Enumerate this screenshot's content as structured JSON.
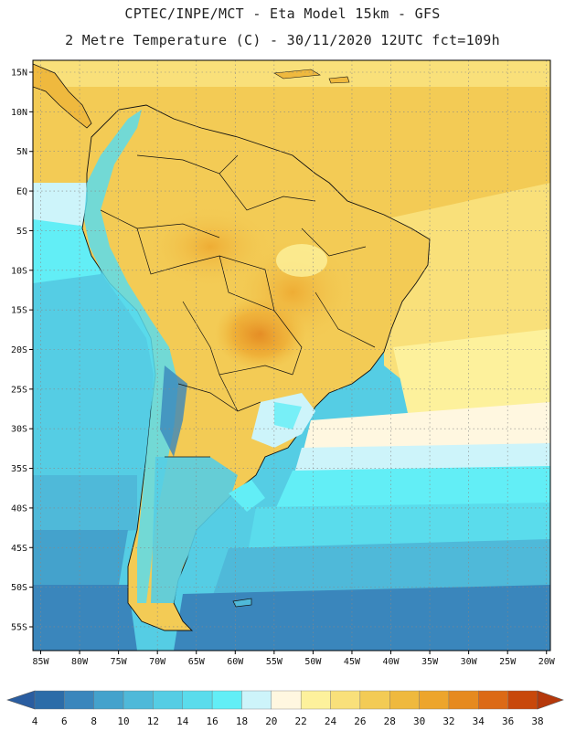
{
  "title": {
    "line1": "CPTEC/INPE/MCT -  Eta Model 15km - GFS",
    "line2": "2 Metre Temperature (C) - 30/11/2020 12UTC fct=109h"
  },
  "map": {
    "latitudes": [
      {
        "value": 15,
        "label": "15N"
      },
      {
        "value": 10,
        "label": "10N"
      },
      {
        "value": 5,
        "label": "5N"
      },
      {
        "value": 0,
        "label": "EQ"
      },
      {
        "value": -5,
        "label": "5S"
      },
      {
        "value": -10,
        "label": "10S"
      },
      {
        "value": -15,
        "label": "15S"
      },
      {
        "value": -20,
        "label": "20S"
      },
      {
        "value": -25,
        "label": "25S"
      },
      {
        "value": -30,
        "label": "30S"
      },
      {
        "value": -35,
        "label": "35S"
      },
      {
        "value": -40,
        "label": "40S"
      },
      {
        "value": -45,
        "label": "45S"
      },
      {
        "value": -50,
        "label": "50S"
      },
      {
        "value": -55,
        "label": "55S"
      }
    ],
    "longitudes": [
      {
        "value": -85,
        "label": "85W"
      },
      {
        "value": -80,
        "label": "80W"
      },
      {
        "value": -75,
        "label": "75W"
      },
      {
        "value": -70,
        "label": "70W"
      },
      {
        "value": -65,
        "label": "65W"
      },
      {
        "value": -60,
        "label": "60W"
      },
      {
        "value": -55,
        "label": "55W"
      },
      {
        "value": -50,
        "label": "50W"
      },
      {
        "value": -45,
        "label": "45W"
      },
      {
        "value": -40,
        "label": "40W"
      },
      {
        "value": -35,
        "label": "35W"
      },
      {
        "value": -30,
        "label": "30W"
      },
      {
        "value": -25,
        "label": "25W"
      },
      {
        "value": -20,
        "label": "20W"
      }
    ],
    "lat_range": [
      -58,
      16.5
    ],
    "lon_range": [
      -86,
      -19.5
    ]
  },
  "colorbar": {
    "labels": [
      "4",
      "6",
      "8",
      "10",
      "12",
      "14",
      "16",
      "18",
      "20",
      "22",
      "24",
      "26",
      "28",
      "30",
      "32",
      "34",
      "36",
      "38"
    ],
    "colors": [
      "#2c6ca8",
      "#3a86bc",
      "#44a2cc",
      "#4fb9d9",
      "#55cde4",
      "#5adcec",
      "#62eef6",
      "#cdf4fa",
      "#fff7e0",
      "#fdf19c",
      "#f9e07a",
      "#f3cb55",
      "#efb93e",
      "#eda52c",
      "#e68a1f",
      "#dc6a16",
      "#c8480b"
    ],
    "low_color": "#2a5da0",
    "high_color": "#b5380b"
  }
}
